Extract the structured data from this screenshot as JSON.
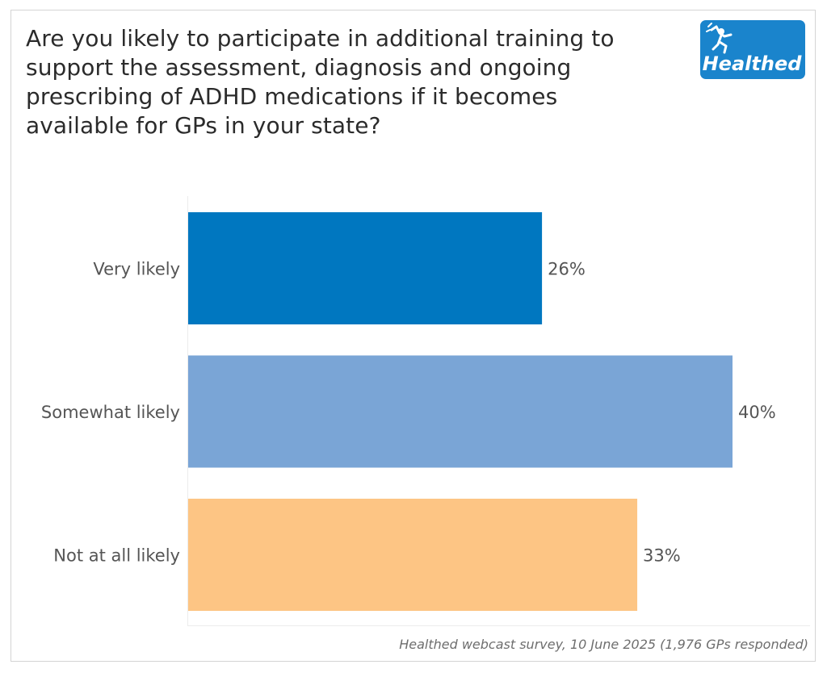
{
  "title": "Are you likely to participate in additional training to support the assessment, diagnosis and ongoing prescribing of ADHD medications if it becomes available for GPs in your state?",
  "logo": {
    "text": "Healthed",
    "icon": "healthed-runner-logo",
    "color": "#1a84cc"
  },
  "footer": "Healthed webcast survey, 10 June 2025 (1,976 GPs responded)",
  "chart_data": {
    "type": "bar",
    "orientation": "horizontal",
    "categories": [
      "Very likely",
      "Somewhat likely",
      "Not at all likely"
    ],
    "values": [
      26,
      40,
      33
    ],
    "value_labels": [
      "26%",
      "40%",
      "33%"
    ],
    "colors": [
      "#0077c0",
      "#7aa5d6",
      "#fdc584"
    ],
    "xlim": [
      0,
      40
    ],
    "unit": "%",
    "grid": false,
    "legend": "none"
  }
}
